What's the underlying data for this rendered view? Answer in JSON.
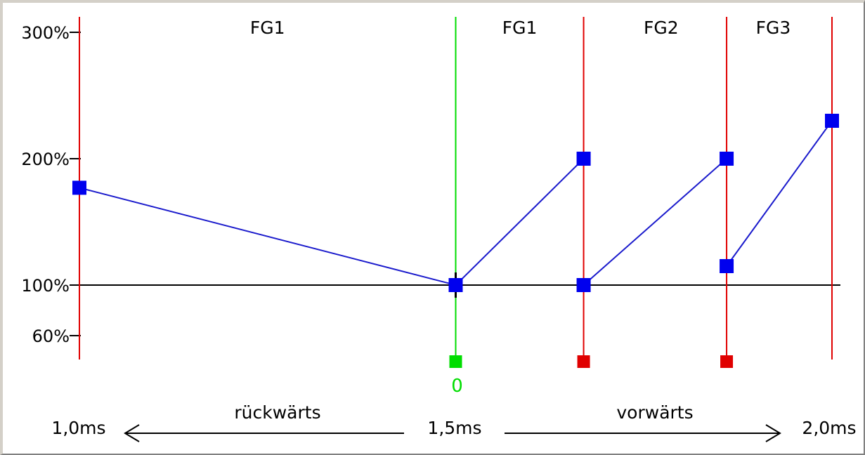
{
  "chart_data": {
    "type": "line",
    "y_ticks": [
      {
        "value": 300,
        "label": "300%"
      },
      {
        "value": 200,
        "label": "200%"
      },
      {
        "value": 100,
        "label": "100%"
      },
      {
        "value": 60,
        "label": "60%"
      }
    ],
    "x_labels": [
      {
        "value": 1.0,
        "label": "1,0ms"
      },
      {
        "value": 1.5,
        "label": "1,5ms"
      },
      {
        "value": 2.0,
        "label": "2,0ms"
      }
    ],
    "direction_labels": {
      "backward": "rückwärts",
      "forward": "vorwärts"
    },
    "sections": [
      {
        "label": "FG1",
        "center_x": 1.25
      },
      {
        "label": "FG1",
        "center_x": 1.585
      },
      {
        "label": "FG2",
        "center_x": 1.773
      },
      {
        "label": "FG3",
        "center_x": 1.922
      }
    ],
    "vertical_markers": [
      {
        "x": 1.0,
        "color": "#e00000",
        "handle": false
      },
      {
        "x": 1.5,
        "color": "#00dd00",
        "handle": true,
        "handle_label": "0"
      },
      {
        "x": 1.67,
        "color": "#e00000",
        "handle": true
      },
      {
        "x": 1.86,
        "color": "#e00000",
        "handle": true
      },
      {
        "x": 2.0,
        "color": "#e00000",
        "handle": false
      }
    ],
    "series": [
      {
        "points": [
          [
            1.0,
            177
          ],
          [
            1.5,
            100
          ],
          [
            1.67,
            200
          ]
        ]
      },
      {
        "points": [
          [
            1.67,
            100
          ],
          [
            1.86,
            200
          ]
        ]
      },
      {
        "points": [
          [
            1.86,
            115
          ],
          [
            2.0,
            230
          ]
        ]
      }
    ],
    "reference_line": 100,
    "ylim": [
      40,
      310
    ],
    "xlim": [
      1.0,
      2.0
    ],
    "colors": {
      "points": "#0000ee",
      "lines": "#1a1acc",
      "axis": "#000000"
    }
  }
}
